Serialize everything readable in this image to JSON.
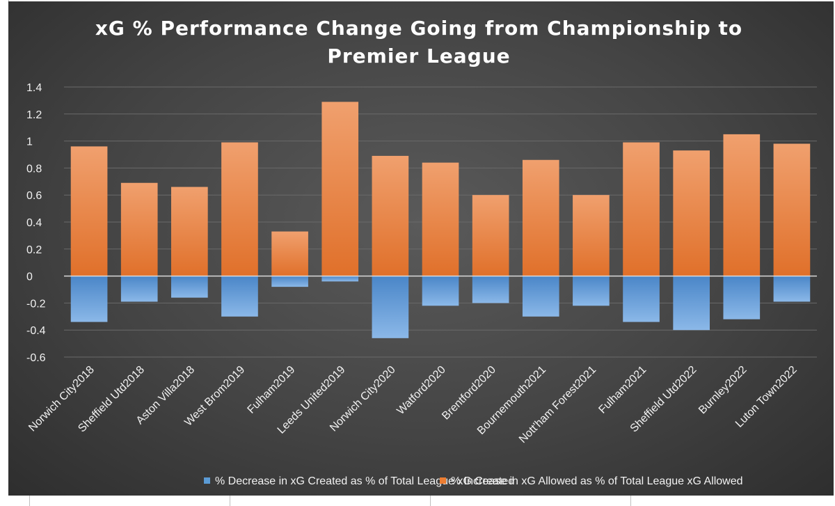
{
  "colors": {
    "decrease": "#5b9bd5",
    "increase": "#ed7d31",
    "gridline": "#6a6a6a",
    "zero_line": "#d9d9d9",
    "text": "#f2f2f2"
  },
  "chart_data": {
    "type": "bar",
    "stacked": true,
    "title_lines": [
      "xG % Performance Change Going from Championship to",
      "Premier League"
    ],
    "xlabel": "",
    "ylabel": "",
    "ylim": [
      -0.6,
      1.4
    ],
    "yticks": [
      1.4,
      1.2,
      1,
      0.8,
      0.6,
      0.4,
      0.2,
      0,
      -0.2,
      -0.4,
      -0.6
    ],
    "ytick_labels": [
      "1.4",
      "1.2",
      "1",
      "0.8",
      "0.6",
      "0.4",
      "0.2",
      "0",
      "-0.2",
      "-0.4",
      "-0.6"
    ],
    "grid": true,
    "legend_position": "bottom",
    "categories": [
      "Norwich City2018",
      "Sheffield Utd2018",
      "Aston Villa2018",
      "West Brom2019",
      "Fulham2019",
      "Leeds United2019",
      "Norwich City2020",
      "Watford2020",
      "Brentford2020",
      "Bournemouth2021",
      "Nott'ham Forest2021",
      "Fulham2021",
      "Sheffield Utd2022",
      "Burnley2022",
      "Luton Town2022"
    ],
    "series": [
      {
        "name": "% Decrease in xG Created as % of Total League xG Created",
        "values": [
          -0.34,
          -0.19,
          -0.16,
          -0.3,
          -0.08,
          -0.04,
          -0.46,
          -0.22,
          -0.2,
          -0.3,
          -0.22,
          -0.34,
          -0.4,
          -0.32,
          -0.19
        ]
      },
      {
        "name": "% Increase in xG Allowed as % of Total League xG Allowed",
        "values": [
          0.96,
          0.69,
          0.66,
          0.99,
          0.33,
          1.29,
          0.89,
          0.84,
          0.6,
          0.86,
          0.6,
          0.99,
          0.93,
          1.05,
          0.98
        ]
      }
    ]
  }
}
